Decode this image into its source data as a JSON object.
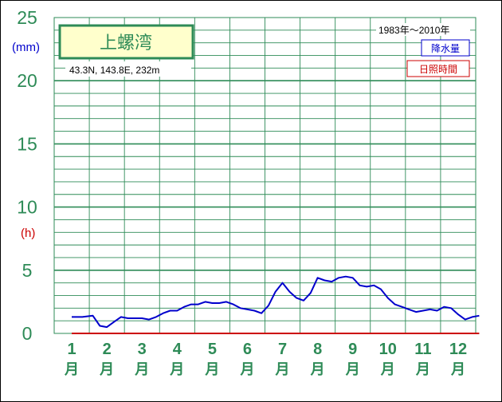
{
  "chart_data": {
    "type": "line",
    "title": "上螺湾",
    "location": "43.3N,  143.8E,  232m",
    "period": "1983年～2010年",
    "y_ticks": [
      "25",
      "20",
      "15",
      "10",
      "5",
      "0"
    ],
    "y_unit_left": "(mm)",
    "y_unit_right": "(h)",
    "ylim": [
      0,
      25
    ],
    "grid": true,
    "months": [
      "1",
      "2",
      "3",
      "4",
      "5",
      "6",
      "7",
      "8",
      "9",
      "10",
      "11",
      "12"
    ],
    "month_suffix": "月",
    "legend": [
      {
        "label": "降水量",
        "color": "#0000cc"
      },
      {
        "label": "日照時間",
        "color": "#cc0000"
      }
    ],
    "series": [
      {
        "name": "降水量",
        "color": "#0000cc",
        "x": [
          1,
          1.3,
          1.6,
          1.8,
          2,
          2.2,
          2.4,
          2.6,
          2.8,
          3,
          3.2,
          3.4,
          3.6,
          3.8,
          4,
          4.2,
          4.4,
          4.6,
          4.8,
          5,
          5.2,
          5.4,
          5.6,
          5.8,
          6,
          6.2,
          6.4,
          6.6,
          6.8,
          7,
          7.2,
          7.4,
          7.6,
          7.8,
          8,
          8.2,
          8.4,
          8.6,
          8.8,
          9,
          9.2,
          9.4,
          9.6,
          9.8,
          10,
          10.2,
          10.4,
          10.6,
          10.8,
          11,
          11.2,
          11.4,
          11.6,
          11.8,
          12,
          12.2,
          12.4,
          12.6
        ],
        "values": [
          1.3,
          1.3,
          1.4,
          0.6,
          0.5,
          0.9,
          1.3,
          1.2,
          1.2,
          1.2,
          1.1,
          1.3,
          1.6,
          1.8,
          1.8,
          2.1,
          2.3,
          2.3,
          2.5,
          2.4,
          2.4,
          2.5,
          2.3,
          2.0,
          1.9,
          1.8,
          1.6,
          2.2,
          3.3,
          4.0,
          3.3,
          2.8,
          2.6,
          3.2,
          4.4,
          4.2,
          4.1,
          4.4,
          4.5,
          4.4,
          3.8,
          3.7,
          3.8,
          3.5,
          2.8,
          2.3,
          2.1,
          1.9,
          1.7,
          1.8,
          1.9,
          1.8,
          2.1,
          2.0,
          1.5,
          1.1,
          1.3,
          1.4
        ]
      },
      {
        "name": "日照時間",
        "color": "#cc0000",
        "x": [
          1,
          12.6
        ],
        "values": [
          0,
          0
        ]
      }
    ]
  }
}
